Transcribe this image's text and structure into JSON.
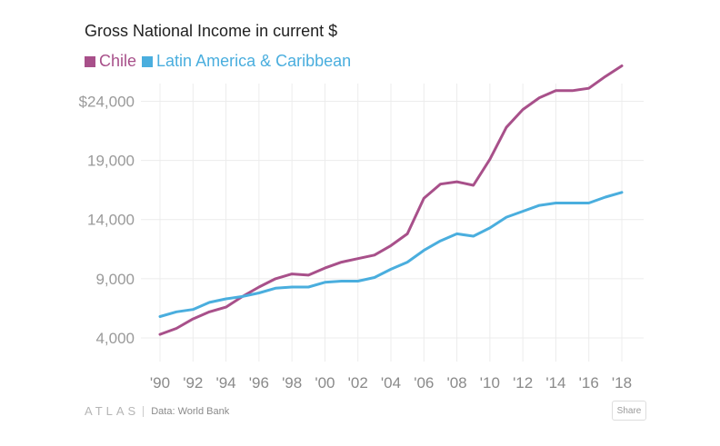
{
  "chart_data": {
    "type": "line",
    "title": "Gross National Income in current $",
    "x": [
      1990,
      1991,
      1992,
      1993,
      1994,
      1995,
      1996,
      1997,
      1998,
      1999,
      2000,
      2001,
      2002,
      2003,
      2004,
      2005,
      2006,
      2007,
      2008,
      2009,
      2010,
      2011,
      2012,
      2013,
      2014,
      2015,
      2016,
      2017,
      2018
    ],
    "x_tick_labels": [
      "'90",
      "'92",
      "'94",
      "'96",
      "'98",
      "'00",
      "'02",
      "'04",
      "'06",
      "'08",
      "'10",
      "'12",
      "'14",
      "'16",
      "'18"
    ],
    "y_tick_values": [
      4000,
      9000,
      14000,
      19000,
      24000
    ],
    "y_tick_labels": [
      "4,000",
      "9,000",
      "14,000",
      "19,000",
      "$24,000"
    ],
    "ylim": [
      2000,
      25500
    ],
    "grid": true,
    "legend_position": "top-left",
    "series": [
      {
        "name": "Chile",
        "color": "#a8508a",
        "values": [
          4300,
          4800,
          5600,
          6200,
          6600,
          7500,
          8300,
          9000,
          9400,
          9300,
          9900,
          10400,
          10700,
          11000,
          11800,
          12800,
          15800,
          17000,
          17200,
          16900,
          19100,
          21800,
          23300,
          24300,
          24900,
          24900,
          25100,
          26100,
          27000
        ]
      },
      {
        "name": "Latin America & Caribbean",
        "color": "#4aaede",
        "values": [
          5800,
          6200,
          6400,
          7000,
          7300,
          7500,
          7800,
          8200,
          8300,
          8300,
          8700,
          8800,
          8800,
          9100,
          9800,
          10400,
          11400,
          12200,
          12800,
          12600,
          13300,
          14200,
          14700,
          15200,
          15400,
          15400,
          15400,
          15900,
          16300
        ]
      }
    ]
  },
  "footer": {
    "brand": "ATLAS",
    "source": "Data: World Bank",
    "share_label": "Share"
  }
}
